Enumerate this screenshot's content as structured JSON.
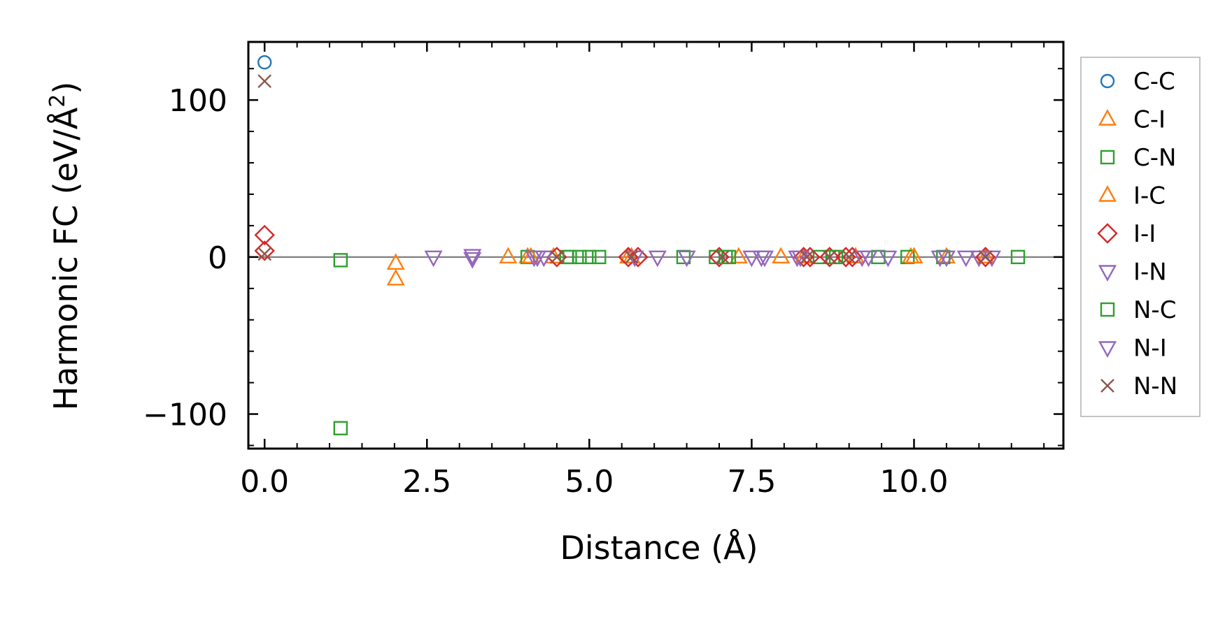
{
  "chart_data": {
    "type": "scatter",
    "title": "",
    "xlabel": "Distance (Å)",
    "ylabel_main": "Harmonic FC (eV/Å",
    "ylabel_sup": "2",
    "ylabel_close": ")",
    "xlim": [
      -0.25,
      12.3
    ],
    "ylim": [
      -122,
      137
    ],
    "xticks": [
      0.0,
      2.5,
      5.0,
      7.5,
      10.0
    ],
    "xtick_labels": [
      "0.0",
      "2.5",
      "5.0",
      "7.5",
      "10.0"
    ],
    "yticks": [
      -100,
      0,
      100
    ],
    "ytick_labels": [
      "−100",
      "0",
      "100"
    ],
    "grid": false,
    "zero_line": true,
    "legend_position": "right",
    "series": [
      {
        "name": "C-C",
        "marker": "circle",
        "color": "#1f77b4",
        "points": [
          [
            0.0,
            124
          ]
        ]
      },
      {
        "name": "C-I",
        "marker": "triangle-up",
        "color": "#ff7f0e",
        "points": [
          [
            2.02,
            -4
          ],
          [
            2.02,
            -14
          ],
          [
            3.75,
            0
          ],
          [
            4.05,
            0
          ],
          [
            4.45,
            0
          ],
          [
            5.6,
            0
          ],
          [
            7.3,
            0
          ],
          [
            7.95,
            0
          ],
          [
            9.95,
            0
          ],
          [
            10.5,
            0
          ],
          [
            11.1,
            0
          ]
        ]
      },
      {
        "name": "C-N",
        "marker": "square",
        "color": "#2ca02c",
        "points": [
          [
            1.17,
            -2
          ],
          [
            1.17,
            -109
          ],
          [
            4.05,
            0
          ],
          [
            4.65,
            0
          ],
          [
            4.85,
            0
          ],
          [
            5.0,
            0
          ],
          [
            5.15,
            0
          ],
          [
            6.45,
            0
          ],
          [
            6.95,
            0
          ],
          [
            7.15,
            0
          ],
          [
            8.55,
            0
          ],
          [
            8.75,
            0
          ],
          [
            9.45,
            0
          ],
          [
            9.9,
            0
          ],
          [
            10.45,
            0
          ],
          [
            11.6,
            0
          ]
        ]
      },
      {
        "name": "I-C",
        "marker": "triangle-up",
        "color": "#ff7f0e",
        "points": [
          [
            4.1,
            0
          ],
          [
            5.65,
            0
          ],
          [
            8.3,
            0
          ],
          [
            9.1,
            0
          ],
          [
            10.0,
            0
          ]
        ]
      },
      {
        "name": "I-I",
        "marker": "diamond",
        "color": "#d62728",
        "points": [
          [
            0.0,
            14
          ],
          [
            0.0,
            4
          ],
          [
            4.5,
            0
          ],
          [
            5.6,
            0
          ],
          [
            5.75,
            0
          ],
          [
            7.0,
            0
          ],
          [
            8.3,
            0
          ],
          [
            8.4,
            0
          ],
          [
            8.7,
            0
          ],
          [
            8.95,
            0
          ],
          [
            9.05,
            0
          ],
          [
            11.1,
            0
          ]
        ]
      },
      {
        "name": "I-N",
        "marker": "triangle-down",
        "color": "#9467bd",
        "points": [
          [
            2.6,
            0
          ],
          [
            3.2,
            1
          ],
          [
            3.2,
            -1
          ],
          [
            4.2,
            0
          ],
          [
            4.3,
            0
          ],
          [
            6.05,
            0
          ],
          [
            6.5,
            0
          ],
          [
            7.5,
            0
          ],
          [
            7.65,
            0
          ],
          [
            8.2,
            0
          ],
          [
            9.2,
            0
          ],
          [
            9.6,
            0
          ],
          [
            10.4,
            0
          ],
          [
            10.8,
            0
          ],
          [
            11.0,
            0
          ]
        ]
      },
      {
        "name": "N-C",
        "marker": "square",
        "color": "#2ca02c",
        "points": [
          [
            4.7,
            0
          ],
          [
            7.1,
            0
          ],
          [
            8.8,
            0
          ]
        ]
      },
      {
        "name": "N-I",
        "marker": "triangle-down",
        "color": "#9467bd",
        "points": [
          [
            4.15,
            0
          ],
          [
            5.7,
            0
          ],
          [
            7.7,
            0
          ],
          [
            8.25,
            0
          ],
          [
            9.3,
            0
          ],
          [
            10.5,
            0
          ],
          [
            11.2,
            0
          ]
        ]
      },
      {
        "name": "N-N",
        "marker": "x",
        "color": "#8c564b",
        "points": [
          [
            0.0,
            112
          ],
          [
            0.0,
            2
          ],
          [
            4.5,
            0
          ],
          [
            5.65,
            0
          ],
          [
            7.05,
            0
          ],
          [
            8.35,
            0
          ],
          [
            8.7,
            0
          ],
          [
            9.0,
            0
          ],
          [
            11.1,
            0
          ]
        ]
      }
    ]
  }
}
